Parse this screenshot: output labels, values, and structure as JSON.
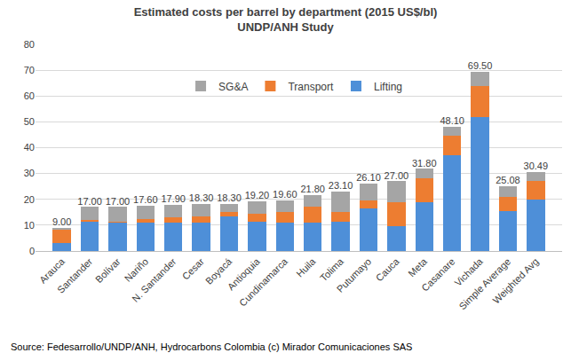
{
  "chart_data": {
    "type": "bar",
    "title": "Estimated costs per barrel by department (2015 US$/bl)",
    "subtitle": "UNDP/ANH Study",
    "source": "Source: Fedesarrollo/UNDP/ANH, Hydrocarbons Colombia (c) Mirador Comunicaciones SAS",
    "categories": [
      "Arauca",
      "Santander",
      "Bolívar",
      "Nariño",
      "N. Santander",
      "Cesar",
      "Boyacá",
      "Antioquia",
      "Cundinamarca",
      "Huila",
      "Tolima",
      "Putumayo",
      "Cauca",
      "Meta",
      "Casanare",
      "Vichada",
      "Simple Average",
      "Weighted Avg"
    ],
    "series": [
      {
        "name": "Lifting",
        "color": "#4e8fd8",
        "values": [
          3,
          11.5,
          11,
          11,
          11,
          11,
          13.5,
          11.5,
          11,
          11,
          11.5,
          16.5,
          9.5,
          19,
          37,
          52,
          15.5,
          20
        ]
      },
      {
        "name": "Transport",
        "color": "#ed7d31",
        "values": [
          5.5,
          0.5,
          0.5,
          1.5,
          2,
          2.5,
          1.5,
          3,
          4,
          6,
          3.5,
          3,
          9.5,
          9,
          7.5,
          12,
          5.5,
          7
        ]
      },
      {
        "name": "SG&A",
        "color": "#a5a5a5",
        "values": [
          0.5,
          5,
          5.5,
          5.1,
          4.9,
          4.8,
          3.3,
          4.7,
          4.6,
          4.8,
          8.1,
          6.6,
          8,
          3.8,
          3.6,
          5.5,
          4.08,
          3.49
        ]
      }
    ],
    "totals": [
      9,
      17,
      17,
      17.6,
      17.9,
      18.3,
      18.3,
      19.2,
      19.6,
      21.8,
      23.1,
      26.1,
      27,
      31.8,
      48.1,
      69.5,
      25.08,
      30.49
    ],
    "total_labels": [
      "9.00",
      "17.00",
      "17.00",
      "17.60",
      "17.90",
      "18.30",
      "18.30",
      "19.20",
      "19.60",
      "21.80",
      "23.10",
      "26.10",
      "27.00",
      "31.80",
      "48.10",
      "69.50",
      "25.08",
      "30.49"
    ],
    "stacked": true,
    "data_labels": true,
    "legend": "top",
    "grid": true,
    "ylim": [
      0,
      80
    ],
    "yticks": [
      0,
      10,
      20,
      30,
      40,
      50,
      60,
      70,
      80
    ]
  }
}
